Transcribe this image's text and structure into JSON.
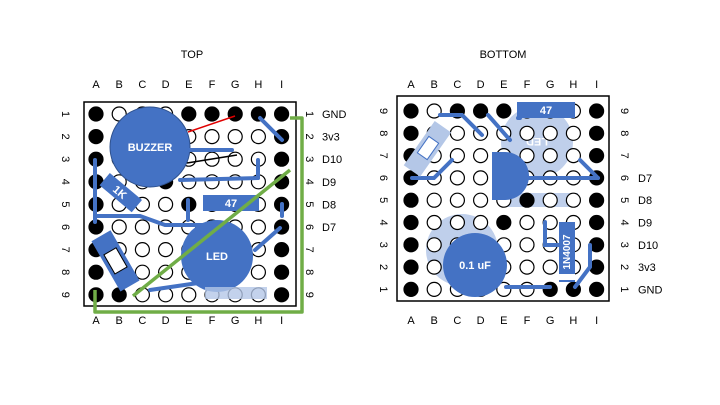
{
  "top": {
    "title": "TOP",
    "cols": [
      "A",
      "B",
      "C",
      "D",
      "E",
      "F",
      "G",
      "H",
      "I"
    ],
    "rows_left": [
      "1",
      "2",
      "3",
      "4",
      "5",
      "6",
      "7",
      "8",
      "9"
    ],
    "rows_right": [
      "1",
      "2",
      "3",
      "4",
      "5",
      "6",
      "7",
      "8",
      "9"
    ],
    "pins": [
      "GND",
      "3v3",
      "D10",
      "D9",
      "D8",
      "D7"
    ],
    "components": {
      "buzzer": "BUZZER",
      "led": "LED",
      "resistor_1k": "1K",
      "resistor_47": "47"
    }
  },
  "bottom": {
    "title": "BOTTOM",
    "cols": [
      "A",
      "B",
      "C",
      "D",
      "E",
      "F",
      "G",
      "H",
      "I"
    ],
    "rows_left": [
      "9",
      "8",
      "7",
      "6",
      "5",
      "4",
      "3",
      "2",
      "1"
    ],
    "rows_right": [
      "9",
      "8",
      "7",
      "6",
      "5",
      "4",
      "3",
      "2",
      "1"
    ],
    "pins": [
      "D7",
      "D8",
      "D9",
      "D10",
      "3v3",
      "GND"
    ],
    "components": {
      "capacitor": "0.1 uF",
      "diode": "1N4007",
      "resistor_47": "47",
      "led_ghost": "LED"
    }
  },
  "colors": {
    "blue": "#4472c4",
    "ghost": "#b4c7e7",
    "green": "#70ad47",
    "red": "#e00000",
    "black": "#000000"
  }
}
